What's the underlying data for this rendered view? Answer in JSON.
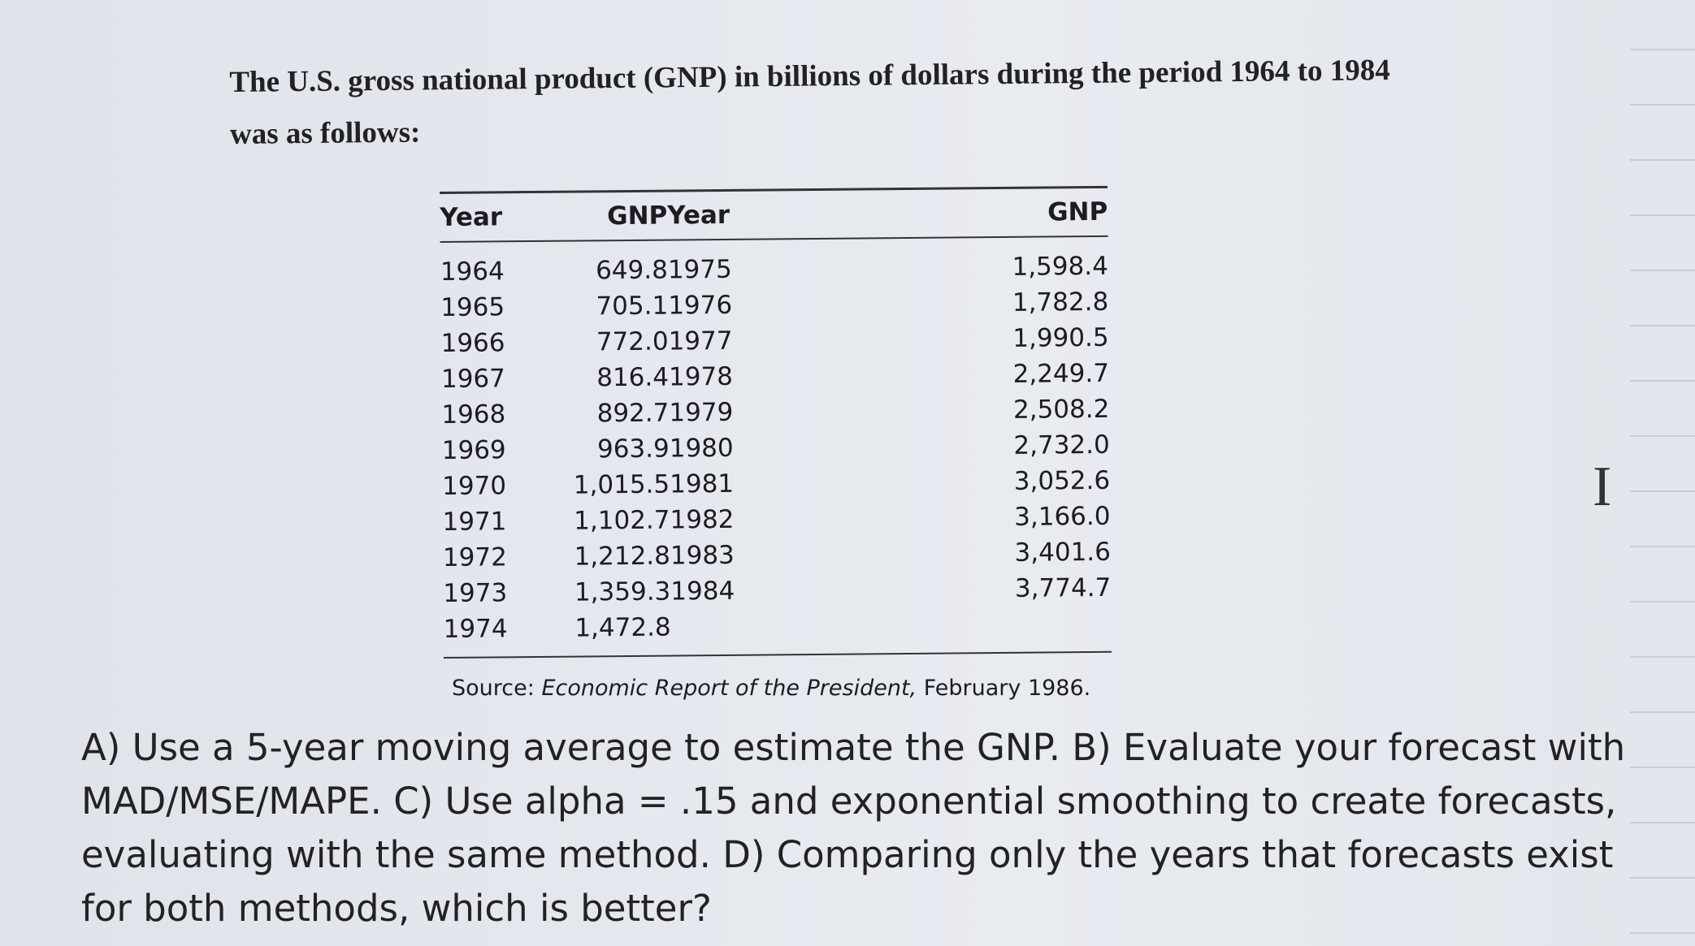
{
  "intro": "The U.S. gross national product (GNP) in billions of dollars during the period 1964 to 1984 was as follows:",
  "table": {
    "header": [
      "Year",
      "GNP",
      "Year",
      "GNP"
    ],
    "left_rows": [
      [
        "1964",
        "649.8"
      ],
      [
        "1965",
        "705.1"
      ],
      [
        "1966",
        "772.0"
      ],
      [
        "1967",
        "816.4"
      ],
      [
        "1968",
        "892.7"
      ],
      [
        "1969",
        "963.9"
      ],
      [
        "1970",
        "1,015.5"
      ],
      [
        "1971",
        "1,102.7"
      ],
      [
        "1972",
        "1,212.8"
      ],
      [
        "1973",
        "1,359.3"
      ],
      [
        "1974",
        "1,472.8"
      ]
    ],
    "right_rows": [
      [
        "1975",
        "1,598.4"
      ],
      [
        "1976",
        "1,782.8"
      ],
      [
        "1977",
        "1,990.5"
      ],
      [
        "1978",
        "2,249.7"
      ],
      [
        "1979",
        "2,508.2"
      ],
      [
        "1980",
        "2,732.0"
      ],
      [
        "1981",
        "3,052.6"
      ],
      [
        "1982",
        "3,166.0"
      ],
      [
        "1983",
        "3,401.6"
      ],
      [
        "1984",
        "3,774.7"
      ]
    ]
  },
  "source": {
    "label": "Source:",
    "title": "Economic Report of the President,",
    "date": "February 1986."
  },
  "question": "A) Use a 5-year moving average to estimate the GNP. B) Evaluate your forecast with MAD/MSE/MAPE. C) Use alpha = .15 and exponential smoothing to create forecasts, evaluating with the same method. D) Comparing only the years that forecasts exist for both methods, which is better?"
}
